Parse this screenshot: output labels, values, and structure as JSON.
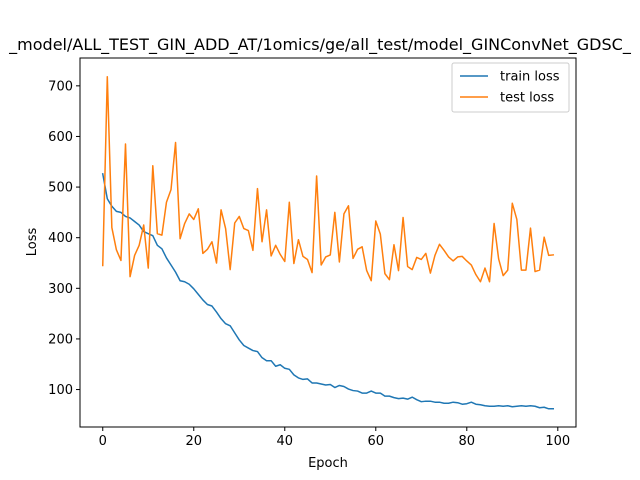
{
  "chart_data": {
    "type": "line",
    "title": "_model/ALL_TEST_GIN_ADD_AT/1omics/ge/all_test/model_GINConvNet_GDSC_",
    "xlabel": "Epoch",
    "ylabel": "Loss",
    "xlim": [
      -5,
      104
    ],
    "ylim": [
      26,
      755
    ],
    "xticks": [
      0,
      20,
      40,
      60,
      80,
      100
    ],
    "yticks": [
      100,
      200,
      300,
      400,
      500,
      600,
      700
    ],
    "legend_position": "upper right",
    "grid": false,
    "series": [
      {
        "name": "train loss",
        "color": "#1f77b4",
        "values": [
          526,
          477,
          462,
          452,
          450,
          442,
          439,
          432,
          425,
          412,
          408,
          404,
          385,
          378,
          360,
          346,
          332,
          315,
          313,
          308,
          299,
          288,
          277,
          268,
          265,
          253,
          240,
          230,
          226,
          212,
          198,
          187,
          182,
          177,
          175,
          163,
          157,
          157,
          146,
          149,
          142,
          140,
          129,
          123,
          120,
          121,
          113,
          113,
          111,
          109,
          110,
          104,
          108,
          106,
          101,
          98,
          97,
          93,
          93,
          97,
          93,
          93,
          87,
          87,
          84,
          82,
          83,
          81,
          85,
          80,
          76,
          77,
          77,
          75,
          75,
          73,
          73,
          75,
          74,
          71,
          72,
          75,
          71,
          70,
          68,
          67,
          67,
          68,
          67,
          68,
          66,
          67,
          68,
          67,
          68,
          67,
          64,
          65,
          62,
          62
        ]
      },
      {
        "name": "test loss",
        "color": "#ff7f0e",
        "values": [
          345,
          718,
          420,
          376,
          355,
          585,
          323,
          365,
          385,
          425,
          340,
          542,
          408,
          405,
          470,
          495,
          588,
          398,
          428,
          447,
          436,
          457,
          369,
          377,
          392,
          350,
          455,
          418,
          337,
          429,
          442,
          418,
          414,
          375,
          497,
          392,
          455,
          364,
          385,
          367,
          353,
          470,
          349,
          396,
          363,
          357,
          331,
          522,
          346,
          362,
          366,
          450,
          352,
          447,
          463,
          359,
          377,
          382,
          335,
          315,
          433,
          407,
          329,
          317,
          386,
          335,
          440,
          343,
          337,
          361,
          357,
          369,
          330,
          365,
          387,
          375,
          362,
          354,
          362,
          363,
          354,
          346,
          327,
          313,
          340,
          313,
          428,
          358,
          325,
          336,
          468,
          436,
          336,
          336,
          419,
          333,
          336,
          401,
          365,
          366
        ]
      }
    ]
  }
}
